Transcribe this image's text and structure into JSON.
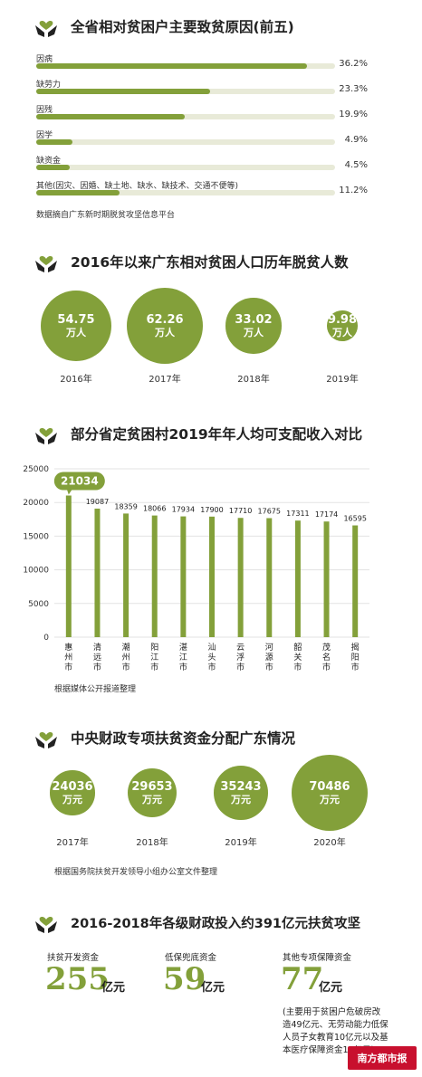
{
  "section1": {
    "title": "全省相对贫困户主要致贫原因(前五)",
    "source": "数据摘自广东新时期脱贫攻坚信息平台"
  },
  "section2": {
    "title": "2016年以来广东相对贫困人口历年脱贫人数"
  },
  "section3": {
    "title": "部分省定贫困村2019年年人均可支配收入对比",
    "source": "根据媒体公开报道整理"
  },
  "section4": {
    "title": "中央财政专项扶贫资金分配广东情况",
    "source": "根据国务院扶贫开发领导小组办公室文件整理"
  },
  "section5": {
    "title": "2016-2018年各级财政投入约391亿元扶贫攻坚",
    "items": [
      {
        "label": "扶贫开发资金",
        "value": "255",
        "unit": "亿元"
      },
      {
        "label": "低保兜底资金",
        "value": "59",
        "unit": "亿元"
      },
      {
        "label": "其他专项保障资金",
        "value": "77",
        "unit": "亿元"
      }
    ],
    "note": [
      "(主要用于贫困户危破房改",
      "造49亿元、无劳动能力低保",
      "人员子女教育10亿元以及基",
      "本医疗保障资金18亿元)"
    ]
  },
  "logo_text": "南方都市报",
  "colors": {
    "accent": "#83a03a",
    "track": "#e8ead8"
  },
  "chart_data": [
    {
      "type": "bar",
      "orientation": "horizontal",
      "title": "全省相对贫困户主要致贫原因(前五)",
      "categories": [
        "因病",
        "缺劳力",
        "因残",
        "因学",
        "缺资金",
        "其他(因灾、因婚、缺土地、缺水、缺技术、交通不便等)"
      ],
      "values": [
        36.2,
        23.3,
        19.9,
        4.9,
        4.5,
        11.2
      ],
      "value_labels": [
        "36.2%",
        "23.3%",
        "19.9%",
        "4.9%",
        "4.5%",
        "11.2%"
      ],
      "xlim": [
        0,
        40
      ]
    },
    {
      "type": "bubble",
      "title": "2016年以来广东相对贫困人口历年脱贫人数",
      "categories": [
        "2016年",
        "2017年",
        "2018年",
        "2019年"
      ],
      "values": [
        54.75,
        62.26,
        33.02,
        9.98
      ],
      "value_labels": [
        "54.75",
        "62.26",
        "33.02",
        "9.98"
      ],
      "unit": "万人"
    },
    {
      "type": "bar",
      "title": "部分省定贫困村2019年年人均可支配收入对比",
      "categories": [
        "惠州市",
        "清远市",
        "潮州市",
        "阳江市",
        "湛江市",
        "汕头市",
        "云浮市",
        "河源市",
        "韶关市",
        "茂名市",
        "揭阳市"
      ],
      "values": [
        21034,
        19087,
        18359,
        18066,
        17934,
        17900,
        17710,
        17675,
        17311,
        17174,
        16595
      ],
      "value_labels": [
        "21034",
        "19087",
        "18359",
        "18066",
        "17934",
        "17900",
        "17710",
        "17675",
        "17311",
        "17174",
        "16595"
      ],
      "yticks": [
        "0",
        "5000",
        "10000",
        "15000",
        "20000",
        "25000"
      ],
      "ylim": [
        0,
        25000
      ],
      "grid": true
    },
    {
      "type": "bubble",
      "title": "中央财政专项扶贫资金分配广东情况",
      "categories": [
        "2017年",
        "2018年",
        "2019年",
        "2020年"
      ],
      "values": [
        24036,
        29653,
        35243,
        70486
      ],
      "value_labels": [
        "24036",
        "29653",
        "35243",
        "70486"
      ],
      "unit": "万元"
    }
  ]
}
